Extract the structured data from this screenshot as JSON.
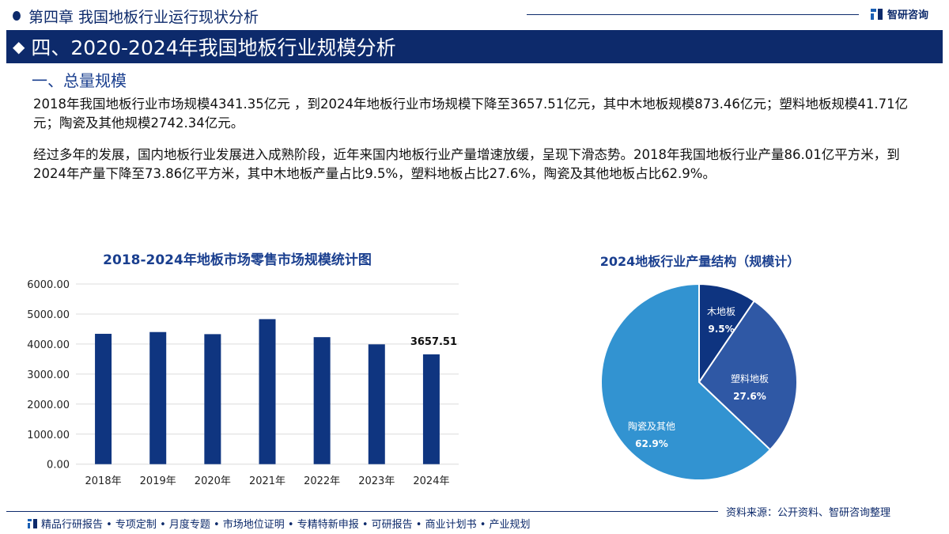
{
  "header": {
    "chapter": "第四章 我国地板行业运行现状分析",
    "logo_text": "智研咨询",
    "section_title": "四、2020-2024年我国地板行业规模分析",
    "subsection": "一、总量规模"
  },
  "paragraphs": [
    "2018年我国地板行业市场规模4341.35亿元 ，到2024年地板行业市场规模下降至3657.51亿元，其中木地板规模873.46亿元；塑料地板规模41.71亿元；陶瓷及其他规模2742.34亿元。",
    "经过多年的发展，国内地板行业发展进入成熟阶段，近年来国内地板行业产量增速放缓，呈现下滑态势。2018年我国地板行业产量86.01亿平方米，到2024年产量下降至73.86亿平方米，其中木地板产量占比9.5%，塑料地板占比27.6%，陶瓷及其他地板占比62.9%。"
  ],
  "chart_data": [
    {
      "type": "bar",
      "title": "2018-2024年地板市场零售市场规模统计图",
      "categories": [
        "2018年",
        "2019年",
        "2020年",
        "2021年",
        "2022年",
        "2023年",
        "2024年"
      ],
      "values": [
        4341.35,
        4400,
        4330,
        4830,
        4230,
        3990,
        3657.51
      ],
      "data_labels": {
        "6": "3657.51"
      },
      "ylim": [
        0,
        6000
      ],
      "yticks": [
        "0.00",
        "1000.00",
        "2000.00",
        "3000.00",
        "4000.00",
        "5000.00",
        "6000.00"
      ],
      "grid": true,
      "color": "#0f3580"
    },
    {
      "type": "pie",
      "title": "2024地板行业产量结构（规模计）",
      "labels": [
        "木地板",
        "塑料地板",
        "陶瓷及其他"
      ],
      "values": [
        9.5,
        27.6,
        62.9
      ],
      "value_labels": [
        "9.5%",
        "27.6%",
        "62.9%"
      ],
      "colors": [
        "#0e3480",
        "#2f58a5",
        "#3293d1"
      ]
    }
  ],
  "source": "资料来源：公开资料、智研咨询整理",
  "footer": "精品行研报告 • 专项定制 • 月度专题 • 市场地位证明 • 专精特新申报 • 可研报告 • 商业计划书 • 产业规划"
}
